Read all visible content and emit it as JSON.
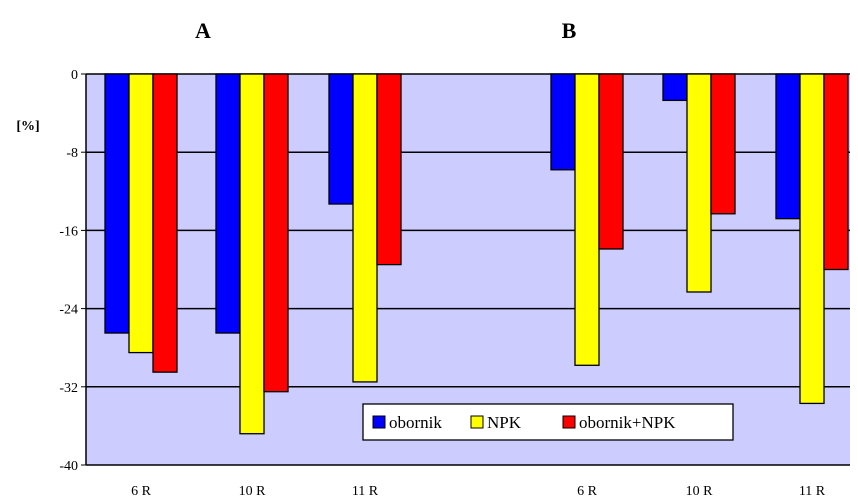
{
  "chart_data": {
    "type": "bar",
    "panels": [
      "A",
      "B"
    ],
    "ylabel": "[%]",
    "ylim": [
      -40,
      0
    ],
    "yticks": [
      0,
      -8,
      -16,
      -24,
      -32,
      -40
    ],
    "grid": true,
    "legend_position": "bottom-right",
    "categories": [
      "6 R",
      "10 R",
      "11 R",
      "6 R",
      "10 R",
      "11 R"
    ],
    "series": [
      {
        "name": "obornik",
        "color": "#0000ff",
        "values": [
          -26.5,
          -26.5,
          -13.3,
          -9.8,
          -2.7,
          -14.8
        ]
      },
      {
        "name": "NPK",
        "color": "#ffff00",
        "values": [
          -28.5,
          -36.8,
          -31.5,
          -29.8,
          -22.3,
          -33.7
        ]
      },
      {
        "name": "obornik+NPK",
        "color": "#ff0000",
        "values": [
          -30.5,
          -32.5,
          -19.5,
          -17.9,
          -14.3,
          -20.0
        ]
      }
    ],
    "plot_background": "#ccccff"
  }
}
